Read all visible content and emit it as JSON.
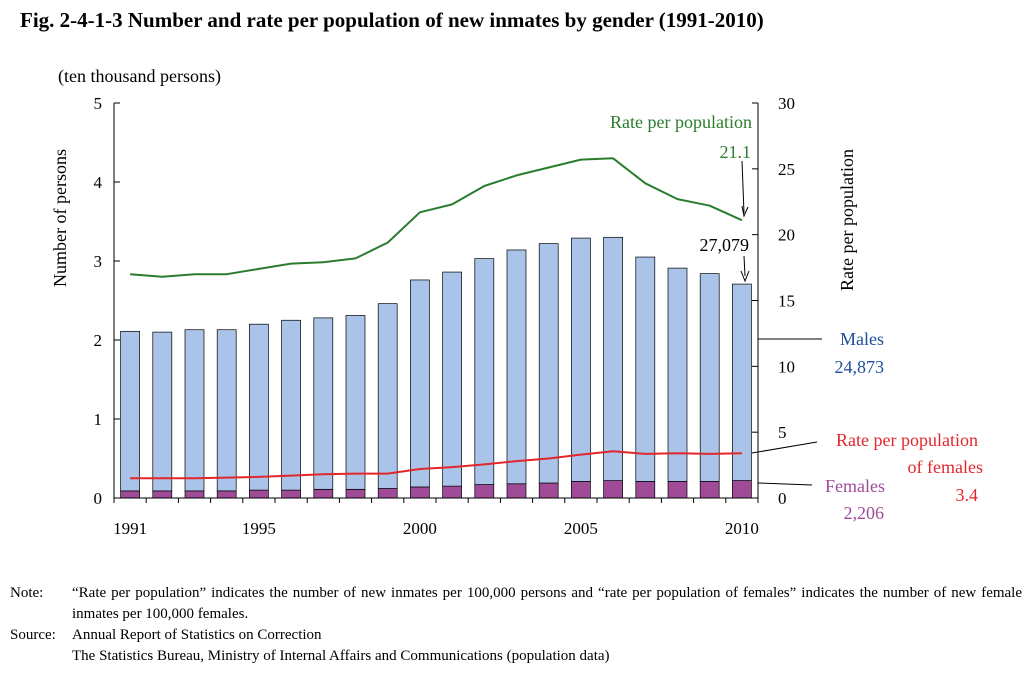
{
  "title": "Fig. 2-4-1-3    Number and rate per population of new inmates by gender (1991-2010)",
  "chart_data": {
    "type": "bar+line",
    "x": [
      1991,
      1992,
      1993,
      1994,
      1995,
      1996,
      1997,
      1998,
      1999,
      2000,
      2001,
      2002,
      2003,
      2004,
      2005,
      2006,
      2007,
      2008,
      2009,
      2010
    ],
    "x_tick_labels": [
      "1991",
      "1995",
      "2000",
      "2005",
      "2010"
    ],
    "left_axis": {
      "unit": "(ten thousand persons)",
      "label": "Number of persons",
      "range": [
        0,
        5
      ],
      "ticks": [
        0,
        1,
        2,
        3,
        4,
        5
      ]
    },
    "right_axis": {
      "label": "Rate per population",
      "range": [
        0,
        30
      ],
      "ticks": [
        0,
        5,
        10,
        15,
        20,
        25,
        30
      ]
    },
    "series": [
      {
        "name": "Males",
        "kind": "bar",
        "axis": "left",
        "color": "#a9c4e8",
        "values": [
          2.02,
          2.01,
          2.04,
          2.04,
          2.1,
          2.15,
          2.17,
          2.2,
          2.34,
          2.62,
          2.71,
          2.86,
          2.96,
          3.03,
          3.08,
          3.08,
          2.84,
          2.7,
          2.63,
          2.4873
        ]
      },
      {
        "name": "Females",
        "kind": "bar",
        "axis": "left",
        "color": "#a04b98",
        "values": [
          0.09,
          0.09,
          0.09,
          0.09,
          0.1,
          0.1,
          0.11,
          0.11,
          0.12,
          0.14,
          0.15,
          0.17,
          0.18,
          0.19,
          0.21,
          0.22,
          0.21,
          0.21,
          0.21,
          0.2206
        ]
      },
      {
        "name": "Rate per population",
        "kind": "line",
        "axis": "right",
        "color": "#2a7d2e",
        "values": [
          17.0,
          16.8,
          17.0,
          17.0,
          17.4,
          17.8,
          17.9,
          18.2,
          19.4,
          21.7,
          22.3,
          23.7,
          24.5,
          25.1,
          25.7,
          25.8,
          23.9,
          22.7,
          22.2,
          21.1
        ]
      },
      {
        "name": "Rate per population of females",
        "kind": "line",
        "axis": "right",
        "color": "#e3262b",
        "values": [
          1.5,
          1.5,
          1.5,
          1.55,
          1.6,
          1.7,
          1.8,
          1.85,
          1.85,
          2.2,
          2.35,
          2.55,
          2.8,
          3.0,
          3.3,
          3.55,
          3.35,
          3.4,
          3.35,
          3.4
        ]
      }
    ],
    "annotations": {
      "rate_label": "Rate per population",
      "rate_value": "21.1",
      "total_value": "27,079",
      "males_label": "Males",
      "males_value": "24,873",
      "fem_rate_label_1": "Rate per population",
      "fem_rate_label_2": "of females",
      "fem_rate_value": "3.4",
      "females_label": "Females",
      "females_value": "2,206"
    },
    "colors": {
      "male_text": "#1f4e9a",
      "female_text": "#a04b98",
      "rate_text": "#2a7d2e",
      "fem_rate_text": "#e3262b"
    }
  },
  "notes": {
    "note_key": "Note:",
    "note_text": "“Rate per population” indicates the number of new inmates per 100,000 persons and “rate per population of females” indicates the number of new female inmates per 100,000 females.",
    "source_key": "Source:",
    "source_line1": "Annual Report of Statistics on Correction",
    "source_line2": "The Statistics Bureau, Ministry of Internal Affairs and Communications (population data)"
  }
}
